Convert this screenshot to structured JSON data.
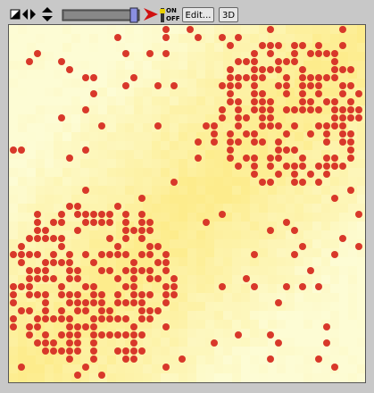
{
  "toolbar": {
    "switch_on": "ON",
    "switch_off": "OFF",
    "edit_button": "Edit...",
    "view_button": "3D"
  }
}
